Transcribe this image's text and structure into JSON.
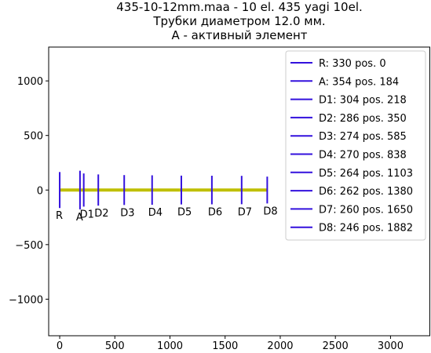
{
  "chart_data": {
    "type": "line",
    "title": [
      "435-10-12mm.maa - 10 el. 435 yagi 10el.",
      "Трубки диаметром 12.0 мм.",
      "A - активный элемент"
    ],
    "xlim": [
      -100,
      3360
    ],
    "ylim": [
      -1335,
      1310
    ],
    "xticks": [
      0,
      500,
      1000,
      1500,
      2000,
      2500,
      3000
    ],
    "yticks": [
      {
        "value": -1000,
        "label": "−1000"
      },
      {
        "value": -500,
        "label": "−500"
      },
      0,
      500,
      1000
    ],
    "legend": "upper right",
    "series": [
      {
        "color": "#bfbf00",
        "x": [
          0,
          1882
        ],
        "values": [
          0,
          0
        ]
      },
      {
        "name": "R: 330 pos. 0",
        "label": "R",
        "color": "#3311dd",
        "x": [
          0,
          0
        ],
        "values": [
          -165,
          165
        ]
      },
      {
        "name": "A: 354 pos. 184",
        "label": "A",
        "color": "#3311dd",
        "x": [
          184,
          184
        ],
        "values": [
          -177,
          177
        ]
      },
      {
        "name": "D1: 304 pos. 218",
        "label": "D1",
        "color": "#3311dd",
        "x": [
          218,
          218
        ],
        "values": [
          -152,
          152
        ]
      },
      {
        "name": "D2: 286 pos. 350",
        "label": "D2",
        "color": "#3311dd",
        "x": [
          350,
          350
        ],
        "values": [
          -143,
          143
        ]
      },
      {
        "name": "D3: 274 pos. 585",
        "label": "D3",
        "color": "#3311dd",
        "x": [
          585,
          585
        ],
        "values": [
          -137,
          137
        ]
      },
      {
        "name": "D4: 270 pos. 838",
        "label": "D4",
        "color": "#3311dd",
        "x": [
          838,
          838
        ],
        "values": [
          -135,
          135
        ]
      },
      {
        "name": "D5: 264 pos. 1103",
        "label": "D5",
        "color": "#3311dd",
        "x": [
          1103,
          1103
        ],
        "values": [
          -132,
          132
        ]
      },
      {
        "name": "D6: 262 pos. 1380",
        "label": "D6",
        "color": "#3311dd",
        "x": [
          1380,
          1380
        ],
        "values": [
          -131,
          131
        ]
      },
      {
        "name": "D7: 260 pos. 1650",
        "label": "D7",
        "color": "#3311dd",
        "x": [
          1650,
          1650
        ],
        "values": [
          -130,
          130
        ]
      },
      {
        "name": "D8: 246 pos. 1882",
        "label": "D8",
        "color": "#3311dd",
        "x": [
          1882,
          1882
        ],
        "values": [
          -123,
          123
        ]
      }
    ]
  }
}
